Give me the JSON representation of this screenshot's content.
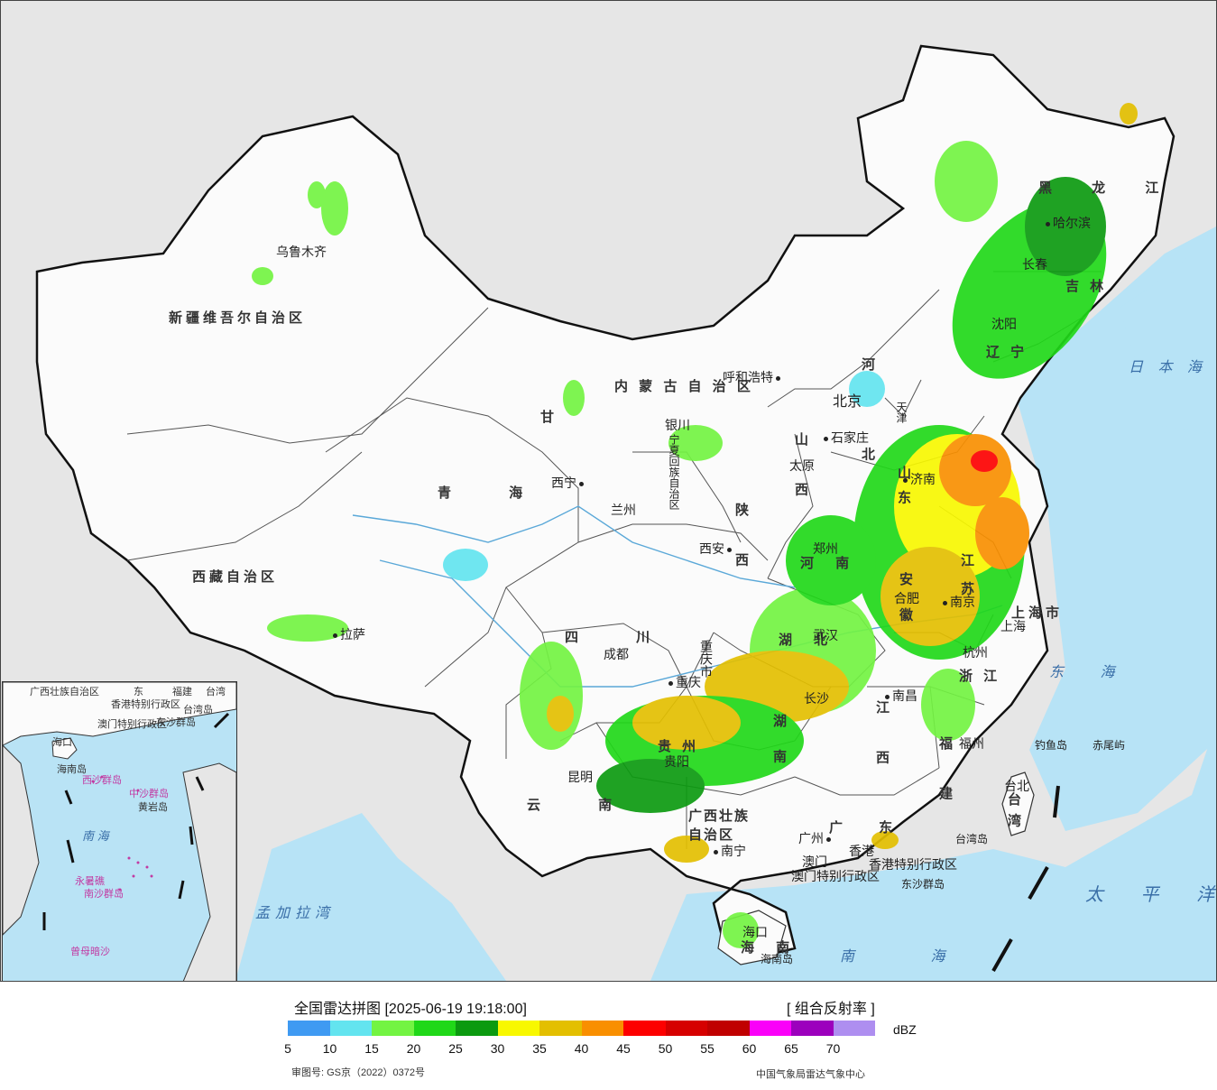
{
  "map": {
    "provinces": [
      {
        "id": "xinjiang",
        "name": "新疆维吾尔自治区"
      },
      {
        "id": "xizang",
        "name": "西藏自治区"
      },
      {
        "id": "qinghai",
        "name": "青 海"
      },
      {
        "id": "gansu",
        "name": "甘"
      },
      {
        "id": "neimenggu",
        "name": "内 蒙 古 自 治 区"
      },
      {
        "id": "ningxia",
        "name": "宁夏回族自治区"
      },
      {
        "id": "shaanxi",
        "name": "陕 西"
      },
      {
        "id": "shanxi",
        "name": "山 西"
      },
      {
        "id": "hebei",
        "name": "河 北"
      },
      {
        "id": "shandong",
        "name": "山 东"
      },
      {
        "id": "liaoning",
        "name": "辽 宁"
      },
      {
        "id": "jilin",
        "name": "吉 林"
      },
      {
        "id": "heilongjiang",
        "name": "黑 龙 江"
      },
      {
        "id": "sichuan",
        "name": "四 川"
      },
      {
        "id": "chongqing",
        "name": "重庆市"
      },
      {
        "id": "yunnan",
        "name": "云 南"
      },
      {
        "id": "guizhou",
        "name": "贵 州"
      },
      {
        "id": "guangxi",
        "name": "广西壮族自治区"
      },
      {
        "id": "guangdong",
        "name": "广 东"
      },
      {
        "id": "hunan",
        "name": "湖 南"
      },
      {
        "id": "hubei",
        "name": "湖 北"
      },
      {
        "id": "henan",
        "name": "河 南"
      },
      {
        "id": "anhui",
        "name": "安 徽"
      },
      {
        "id": "jiangsu",
        "name": "江 苏"
      },
      {
        "id": "zhejiang",
        "name": "浙 江"
      },
      {
        "id": "jiangxi",
        "name": "江 西"
      },
      {
        "id": "fujian",
        "name": "福 建"
      },
      {
        "id": "hainan",
        "name": "海 南"
      },
      {
        "id": "taiwan",
        "name": "台 湾"
      },
      {
        "id": "shanghai",
        "name": "上海市"
      },
      {
        "id": "beijing",
        "name": "北京"
      },
      {
        "id": "tianjin",
        "name": "天津"
      },
      {
        "id": "hk",
        "name": "香港特别行政区"
      },
      {
        "id": "macau",
        "name": "澳门特别行政区"
      }
    ],
    "cities": [
      {
        "id": "urumqi",
        "name": "乌鲁木齐"
      },
      {
        "id": "lhasa",
        "name": "拉萨"
      },
      {
        "id": "xining",
        "name": "西宁"
      },
      {
        "id": "lanzhou",
        "name": "兰州"
      },
      {
        "id": "yinchuan",
        "name": "银川"
      },
      {
        "id": "hohhot",
        "name": "呼和浩特"
      },
      {
        "id": "shijiazhuang",
        "name": "石家庄"
      },
      {
        "id": "taiyuan",
        "name": "太原"
      },
      {
        "id": "xian",
        "name": "西安"
      },
      {
        "id": "zhengzhou",
        "name": "郑州"
      },
      {
        "id": "jinan",
        "name": "济南"
      },
      {
        "id": "shenyang",
        "name": "沈阳"
      },
      {
        "id": "changchun",
        "name": "长春"
      },
      {
        "id": "harbin",
        "name": "哈尔滨"
      },
      {
        "id": "chengdu",
        "name": "成都"
      },
      {
        "id": "chongqing_c",
        "name": "重庆"
      },
      {
        "id": "guiyang",
        "name": "贵阳"
      },
      {
        "id": "kunming",
        "name": "昆明"
      },
      {
        "id": "nanning",
        "name": "南宁"
      },
      {
        "id": "guangzhou",
        "name": "广州"
      },
      {
        "id": "aomen",
        "name": "澳门"
      },
      {
        "id": "xianggang",
        "name": "香港"
      },
      {
        "id": "haikou",
        "name": "海口"
      },
      {
        "id": "changsha",
        "name": "长沙"
      },
      {
        "id": "wuhan",
        "name": "武汉"
      },
      {
        "id": "hefei",
        "name": "合肥"
      },
      {
        "id": "nanjing",
        "name": "南京"
      },
      {
        "id": "hangzhou",
        "name": "杭州"
      },
      {
        "id": "nanchang",
        "name": "南昌"
      },
      {
        "id": "fuzhou",
        "name": "福州"
      },
      {
        "id": "taibei",
        "name": "台北"
      },
      {
        "id": "shanghai_c",
        "name": "上海"
      }
    ],
    "seas": [
      {
        "id": "japan-sea",
        "name": "日 本 海"
      },
      {
        "id": "east-sea",
        "name": "东 海"
      },
      {
        "id": "pacific",
        "name": "太 平 洋"
      },
      {
        "id": "south-sea",
        "name": "南 海"
      },
      {
        "id": "bengal",
        "name": "孟加拉湾"
      }
    ],
    "islands": [
      {
        "id": "diaoyu",
        "name": "钓鱼岛"
      },
      {
        "id": "chiwei",
        "name": "赤尾屿"
      },
      {
        "id": "taiwan-island",
        "name": "台湾岛"
      },
      {
        "id": "dongsha",
        "name": "东沙群岛"
      },
      {
        "id": "hainan-island",
        "name": "海南岛"
      }
    ],
    "inset": {
      "labels": [
        "广西壮族自治区",
        "东",
        "福建",
        "台湾",
        "海口",
        "香港特别行政区",
        "澳门特别行政区",
        "东沙群岛",
        "台湾岛",
        "海南岛",
        "西沙群岛",
        "中沙群岛",
        "黄岩岛",
        "南 海",
        "南沙群岛",
        "永暑礁",
        "曾母暗沙"
      ]
    }
  },
  "legend": {
    "title": "全国雷达拼图 [2025-06-19 19:18:00]",
    "product": "[ 组合反射率 ]",
    "unit": "dBZ",
    "colors": [
      "#3f9af2",
      "#63e4ef",
      "#73f442",
      "#20d818",
      "#0b9a10",
      "#f8f800",
      "#e3bf00",
      "#f98f00",
      "#fd0000",
      "#d60000",
      "#c00000",
      "#fa00f9",
      "#9c00bd",
      "#ae8ef0"
    ],
    "ticks": [
      "5",
      "10",
      "15",
      "20",
      "25",
      "30",
      "35",
      "40",
      "45",
      "50",
      "55",
      "60",
      "65",
      "70"
    ],
    "approval": "审图号: GS京（2022）0372号",
    "center": "中国气象局雷达气象中心"
  }
}
